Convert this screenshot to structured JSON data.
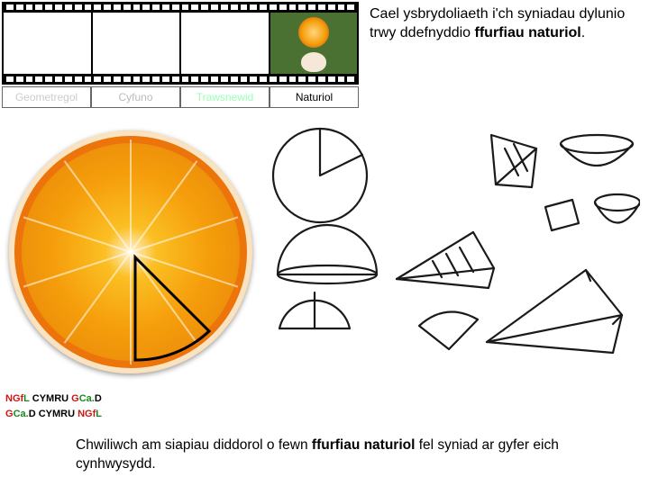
{
  "header": {
    "text_before_bold": "Cael ysbrydoliaeth i'ch syniadau dylunio trwy ddefnyddio ",
    "bold": "ffurfiau naturiol",
    "after": "."
  },
  "tabs": [
    {
      "label": "Geometregol",
      "class": "faded"
    },
    {
      "label": "Cyfuno",
      "class": "semi"
    },
    {
      "label": "Trawsnewid",
      "class": "faded2"
    },
    {
      "label": "Naturiol",
      "class": "active"
    }
  ],
  "logos": {
    "line1_parts": [
      "NGf",
      "L ",
      "CYMRU ",
      "G",
      "Ca.",
      "D"
    ],
    "line2_parts": [
      "G",
      "Ca.",
      "D ",
      "CYMRU ",
      "NGf",
      "L"
    ]
  },
  "footer": {
    "before": "Chwiliwch am siapiau diddorol o fewn ",
    "bold": "ffurfiau naturiol",
    "after": " fel syniad ar gyfer eich cynhwysydd."
  },
  "colors": {
    "orange_outer": "#c2410c",
    "orange_mid": "#f59e0b",
    "orange_inner": "#fff3d6",
    "sketch_stroke": "#1a1a1a"
  }
}
